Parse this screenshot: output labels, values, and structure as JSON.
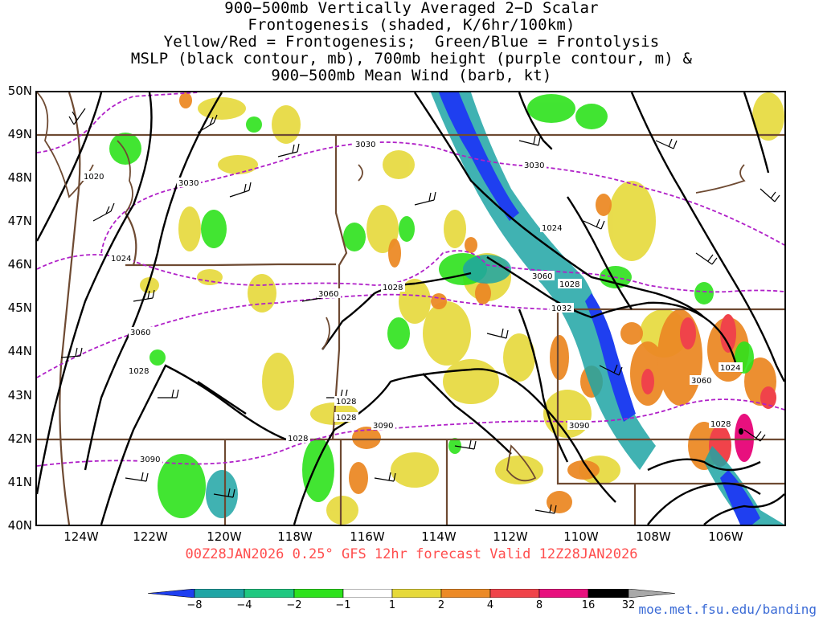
{
  "title": {
    "lines": [
      "900−500mb Vertically Averaged 2−D Scalar",
      "Frontogenesis (shaded, K/6hr/100km)",
      "Yellow/Red = Frontogenesis;  Green/Blue = Frontolysis",
      "MSLP (black contour, mb), 700mb height (purple contour, m) &",
      "900−500mb Mean Wind (barb, kt)"
    ]
  },
  "axes": {
    "lat_labels": [
      "50N",
      "49N",
      "48N",
      "47N",
      "46N",
      "45N",
      "44N",
      "43N",
      "42N",
      "41N",
      "40N"
    ],
    "lon_labels": [
      "124W",
      "122W",
      "120W",
      "118W",
      "116W",
      "114W",
      "112W",
      "110W",
      "108W",
      "106W"
    ]
  },
  "run_info": "00Z28JAN2026 0.25° GFS 12hr forecast Valid 12Z28JAN2026",
  "colorbar": {
    "labels": [
      "−8",
      "−4",
      "−2",
      "−1",
      "1",
      "2",
      "4",
      "8",
      "16",
      "32"
    ],
    "colors": [
      "#1f3ff0",
      "#1fa5a5",
      "#1fc880",
      "#2de21c",
      "#ffffff",
      "#e6d93a",
      "#ec8a26",
      "#f0434a",
      "#e8107e",
      "#000000",
      "#a8a8a8"
    ]
  },
  "contour_labels": {
    "mslp": [
      "1020",
      "1024",
      "1028",
      "1028",
      "1028",
      "1028",
      "1028",
      "1024",
      "1028",
      "1032",
      "1024",
      "1028"
    ],
    "height": [
      "3030",
      "3030",
      "3030",
      "3060",
      "3060",
      "3060",
      "3060",
      "3090",
      "3090",
      "3090"
    ]
  },
  "legend_colors": {
    "mslp": "#000000",
    "height": "#b020c8",
    "boundaries": "#6e4a32"
  },
  "credit": "moe.met.fsu.edu/banding"
}
